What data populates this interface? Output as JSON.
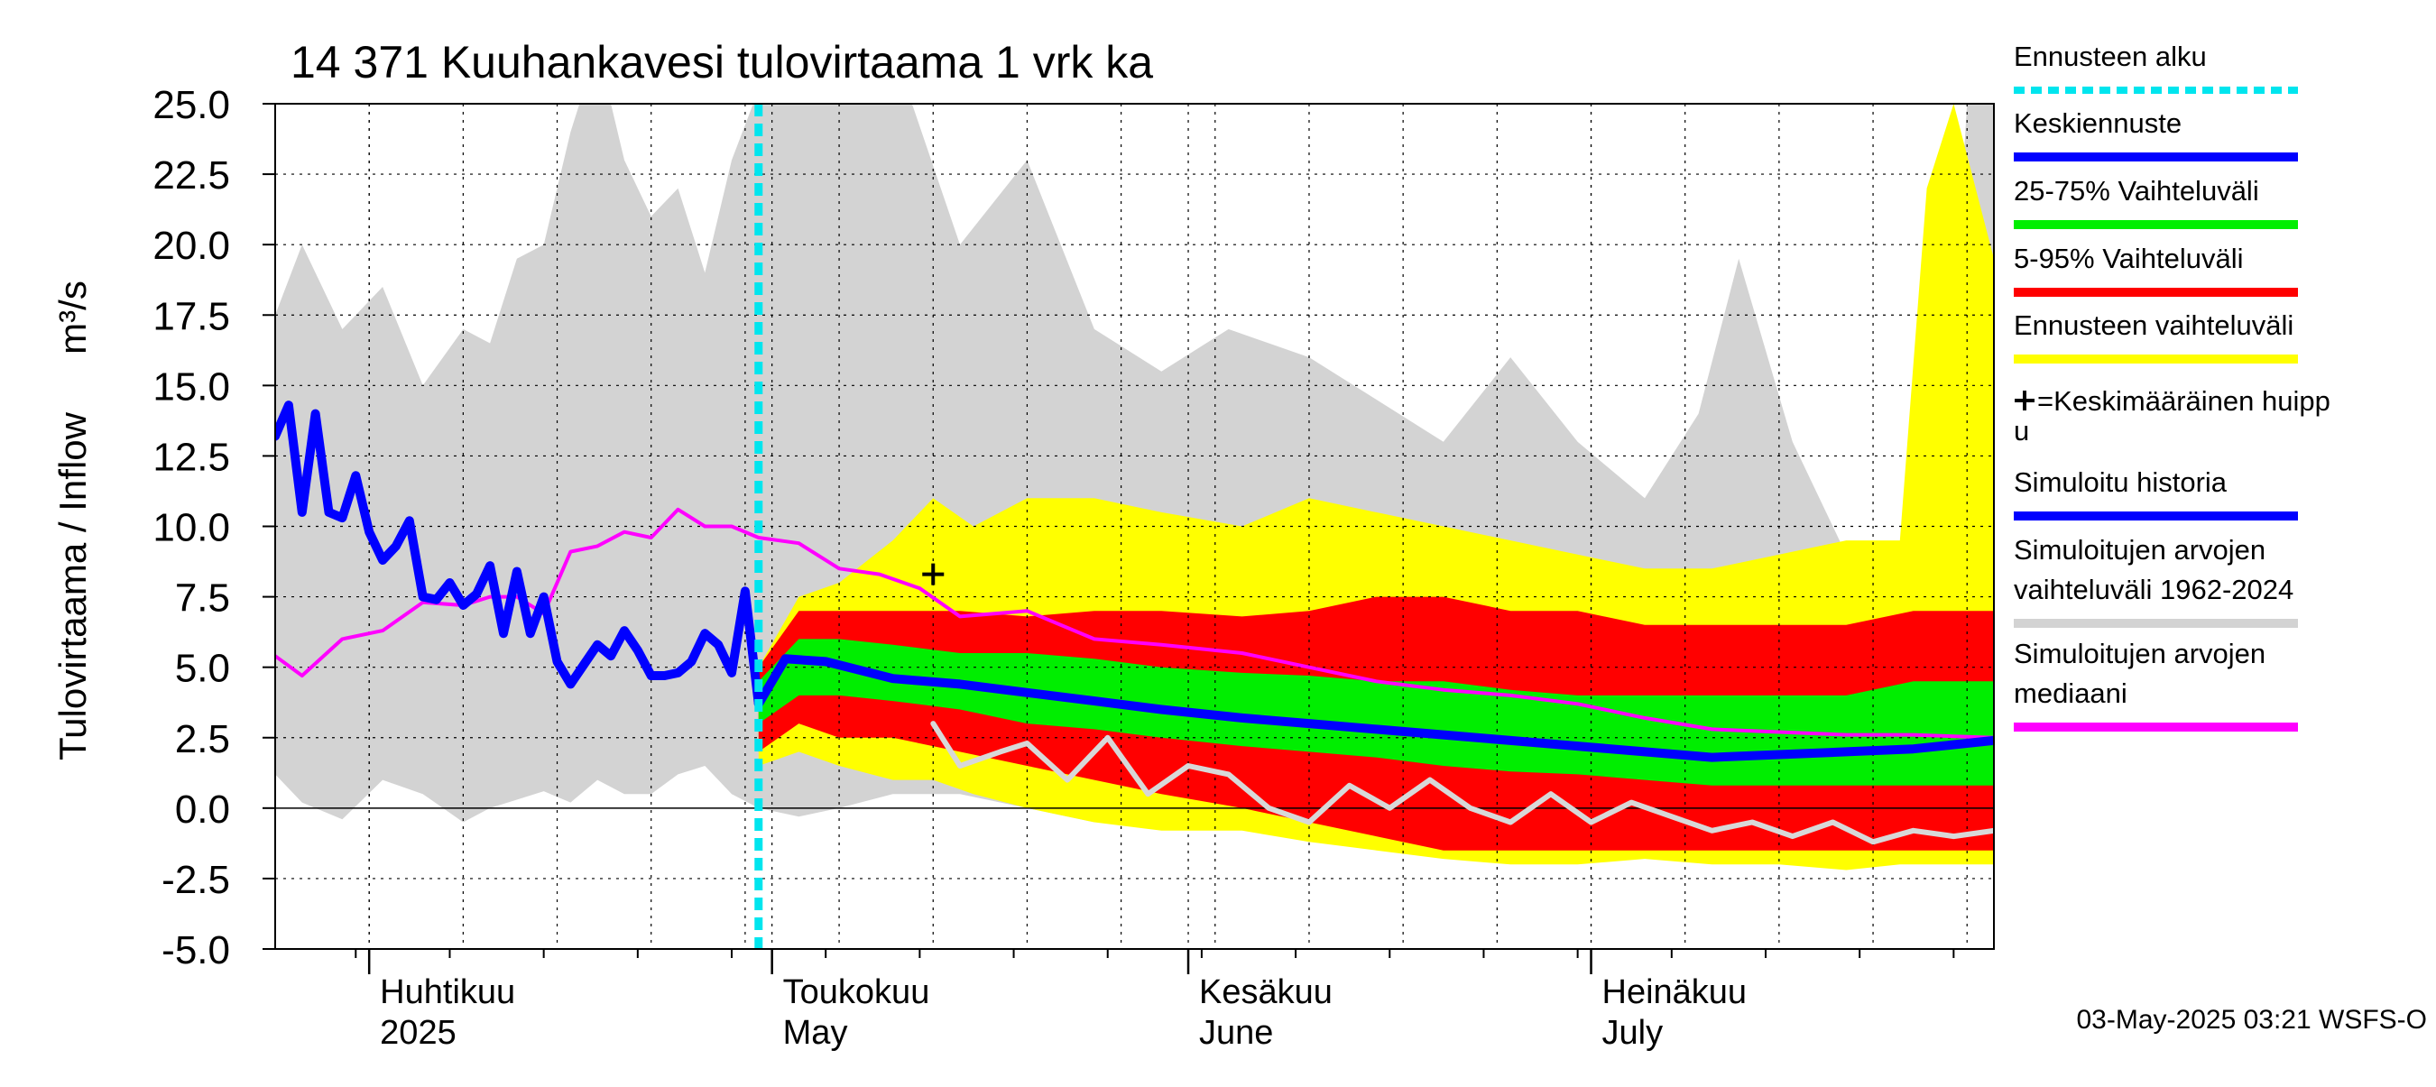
{
  "chart_data": {
    "type": "area",
    "title": "14 371 Kuuhankavesi tulovirtaama 1 vrk ka",
    "ylabel": "Tulovirtaama / Inflow",
    "yunit": "m³/s",
    "ylim": [
      -5.0,
      25.0
    ],
    "yticks": [
      "-5.0",
      "-2.5",
      "0.0",
      "2.5",
      "5.0",
      "7.5",
      "10.0",
      "12.5",
      "15.0",
      "17.5",
      "20.0",
      "22.5",
      "25.0"
    ],
    "xlim": [
      "2025-03-25",
      "2025-07-31"
    ],
    "months": [
      {
        "date": "2025-04-01",
        "fi": "Huhtikuu",
        "en": "2025"
      },
      {
        "date": "2025-05-01",
        "fi": "Toukokuu",
        "en": "May"
      },
      {
        "date": "2025-06-01",
        "fi": "Kesäkuu",
        "en": "June"
      },
      {
        "date": "2025-07-01",
        "fi": "Heinäkuu",
        "en": "July"
      }
    ],
    "grid": true,
    "legend_position": "right",
    "forecast_start": "2025-04-30",
    "mean_peak": {
      "date": "2025-05-13",
      "value": 8.3
    },
    "series": [
      {
        "name": "Simuloitujen arvojen vaihteluväli 1962-2024",
        "kind": "band",
        "color": "#d3d3d3",
        "x": [
          "2025-03-25",
          "2025-03-27",
          "2025-03-30",
          "2025-04-02",
          "2025-04-05",
          "2025-04-08",
          "2025-04-10",
          "2025-04-12",
          "2025-04-14",
          "2025-04-16",
          "2025-04-18",
          "2025-04-20",
          "2025-04-22",
          "2025-04-24",
          "2025-04-26",
          "2025-04-28",
          "2025-04-30",
          "2025-05-03",
          "2025-05-06",
          "2025-05-10",
          "2025-05-15",
          "2025-05-20",
          "2025-05-25",
          "2025-05-30",
          "2025-06-04",
          "2025-06-10",
          "2025-06-15",
          "2025-06-20",
          "2025-06-25",
          "2025-06-30",
          "2025-07-05",
          "2025-07-09",
          "2025-07-12",
          "2025-07-16",
          "2025-07-20",
          "2025-07-24",
          "2025-07-27",
          "2025-07-29",
          "2025-07-31"
        ],
        "low": [
          1.2,
          0.2,
          -0.4,
          1.0,
          0.5,
          -0.5,
          0.0,
          0.3,
          0.6,
          0.2,
          1.0,
          0.5,
          0.5,
          1.2,
          1.5,
          0.5,
          0.0,
          -0.3,
          0.0,
          0.5,
          0.5,
          0.0,
          -0.5,
          -0.3,
          0.0,
          -0.5,
          -0.8,
          -1.0,
          -0.8,
          -1.2,
          -1.0,
          -1.0,
          -0.5,
          -1.0,
          -2.0,
          -1.0,
          -0.8,
          -1.0,
          -1.2
        ],
        "high": [
          17.5,
          20.0,
          17.0,
          18.5,
          15.0,
          17.0,
          16.5,
          19.5,
          20.0,
          24.0,
          27.0,
          23.0,
          21.0,
          22.0,
          19.0,
          23.0,
          25.5,
          27.0,
          27.0,
          27.0,
          20.0,
          23.0,
          17.0,
          15.5,
          17.0,
          16.0,
          14.5,
          13.0,
          16.0,
          13.0,
          11.0,
          14.0,
          19.5,
          13.0,
          9.0,
          9.0,
          9.0,
          25.0,
          26.0
        ]
      },
      {
        "name": "Ennusteen vaihteluväli",
        "kind": "band",
        "color": "#ffff00",
        "x": [
          "2025-04-30",
          "2025-05-03",
          "2025-05-06",
          "2025-05-10",
          "2025-05-13",
          "2025-05-16",
          "2025-05-20",
          "2025-05-25",
          "2025-05-30",
          "2025-06-05",
          "2025-06-10",
          "2025-06-15",
          "2025-06-20",
          "2025-06-25",
          "2025-06-30",
          "2025-07-05",
          "2025-07-10",
          "2025-07-15",
          "2025-07-20",
          "2025-07-24",
          "2025-07-26",
          "2025-07-28",
          "2025-07-31"
        ],
        "low": [
          1.5,
          2.0,
          1.5,
          1.0,
          1.0,
          0.5,
          0.0,
          -0.5,
          -0.8,
          -0.8,
          -1.2,
          -1.5,
          -1.8,
          -2.0,
          -2.0,
          -1.8,
          -2.0,
          -2.0,
          -2.2,
          -2.0,
          -2.0,
          -2.0,
          -2.0
        ],
        "high": [
          5.0,
          7.5,
          8.0,
          9.5,
          11.0,
          10.0,
          11.0,
          11.0,
          10.5,
          10.0,
          11.0,
          10.5,
          10.0,
          9.5,
          9.0,
          8.5,
          8.5,
          9.0,
          9.5,
          9.5,
          22.0,
          25.0,
          19.5
        ]
      },
      {
        "name": "5-95% Vaihteluväli",
        "kind": "band",
        "color": "#ff0000",
        "x": [
          "2025-04-30",
          "2025-05-03",
          "2025-05-06",
          "2025-05-10",
          "2025-05-15",
          "2025-05-20",
          "2025-05-25",
          "2025-05-30",
          "2025-06-05",
          "2025-06-10",
          "2025-06-15",
          "2025-06-20",
          "2025-06-25",
          "2025-06-30",
          "2025-07-05",
          "2025-07-10",
          "2025-07-15",
          "2025-07-20",
          "2025-07-25",
          "2025-07-31"
        ],
        "low": [
          2.0,
          3.0,
          2.5,
          2.5,
          2.0,
          1.5,
          1.0,
          0.5,
          0.0,
          -0.5,
          -1.0,
          -1.5,
          -1.5,
          -1.5,
          -1.5,
          -1.5,
          -1.5,
          -1.5,
          -1.5,
          -1.5
        ],
        "high": [
          5.0,
          7.0,
          7.0,
          7.0,
          7.0,
          6.8,
          7.0,
          7.0,
          6.8,
          7.0,
          7.5,
          7.5,
          7.0,
          7.0,
          6.5,
          6.5,
          6.5,
          6.5,
          7.0,
          7.0
        ]
      },
      {
        "name": "25-75% Vaihteluväli",
        "kind": "band",
        "color": "#00ee00",
        "x": [
          "2025-04-30",
          "2025-05-03",
          "2025-05-06",
          "2025-05-10",
          "2025-05-15",
          "2025-05-20",
          "2025-05-25",
          "2025-05-30",
          "2025-06-05",
          "2025-06-10",
          "2025-06-15",
          "2025-06-20",
          "2025-06-25",
          "2025-06-30",
          "2025-07-05",
          "2025-07-10",
          "2025-07-15",
          "2025-07-20",
          "2025-07-25",
          "2025-07-31"
        ],
        "low": [
          3.0,
          4.0,
          4.0,
          3.8,
          3.5,
          3.0,
          2.8,
          2.5,
          2.2,
          2.0,
          1.8,
          1.5,
          1.3,
          1.2,
          1.0,
          0.8,
          0.8,
          0.8,
          0.8,
          0.8
        ],
        "high": [
          4.5,
          6.0,
          6.0,
          5.8,
          5.5,
          5.5,
          5.3,
          5.0,
          4.8,
          4.7,
          4.5,
          4.5,
          4.2,
          4.0,
          4.0,
          4.0,
          4.0,
          4.0,
          4.5,
          4.5
        ]
      },
      {
        "name": "Simuloitujen arvojen mediaani",
        "kind": "line",
        "color": "#ff00ff",
        "x": [
          "2025-03-25",
          "2025-03-27",
          "2025-03-30",
          "2025-04-02",
          "2025-04-05",
          "2025-04-08",
          "2025-04-10",
          "2025-04-12",
          "2025-04-14",
          "2025-04-16",
          "2025-04-18",
          "2025-04-20",
          "2025-04-22",
          "2025-04-24",
          "2025-04-26",
          "2025-04-28",
          "2025-04-30",
          "2025-05-03",
          "2025-05-06",
          "2025-05-09",
          "2025-05-12",
          "2025-05-15",
          "2025-05-20",
          "2025-05-25",
          "2025-05-30",
          "2025-06-05",
          "2025-06-10",
          "2025-06-15",
          "2025-06-20",
          "2025-06-25",
          "2025-06-30",
          "2025-07-05",
          "2025-07-10",
          "2025-07-15",
          "2025-07-20",
          "2025-07-25",
          "2025-07-31"
        ],
        "values": [
          5.4,
          4.7,
          6.0,
          6.3,
          7.3,
          7.2,
          7.5,
          7.5,
          6.9,
          9.1,
          9.3,
          9.8,
          9.6,
          10.6,
          10.0,
          10.0,
          9.6,
          9.4,
          8.5,
          8.3,
          7.8,
          6.8,
          7.0,
          6.0,
          5.8,
          5.5,
          5.0,
          4.5,
          4.2,
          4.0,
          3.7,
          3.2,
          2.8,
          2.7,
          2.6,
          2.6,
          2.5
        ]
      },
      {
        "name": "Simuloitu historia",
        "kind": "line",
        "color": "#0000ff",
        "x": [
          "2025-03-25",
          "2025-03-26",
          "2025-03-27",
          "2025-03-28",
          "2025-03-29",
          "2025-03-30",
          "2025-03-31",
          "2025-04-01",
          "2025-04-02",
          "2025-04-03",
          "2025-04-04",
          "2025-04-05",
          "2025-04-06",
          "2025-04-07",
          "2025-04-08",
          "2025-04-09",
          "2025-04-10",
          "2025-04-11",
          "2025-04-12",
          "2025-04-13",
          "2025-04-14",
          "2025-04-15",
          "2025-04-16",
          "2025-04-17",
          "2025-04-18",
          "2025-04-19",
          "2025-04-20",
          "2025-04-21",
          "2025-04-22",
          "2025-04-23",
          "2025-04-24",
          "2025-04-25",
          "2025-04-26",
          "2025-04-27",
          "2025-04-28",
          "2025-04-29",
          "2025-04-30"
        ],
        "values": [
          13.2,
          14.3,
          10.5,
          14.0,
          10.5,
          10.3,
          11.8,
          9.8,
          8.8,
          9.3,
          10.2,
          7.5,
          7.4,
          8.0,
          7.2,
          7.6,
          8.6,
          6.2,
          8.4,
          6.2,
          7.5,
          5.2,
          4.4,
          5.1,
          5.8,
          5.4,
          6.3,
          5.6,
          4.7,
          4.7,
          4.8,
          5.2,
          6.2,
          5.8,
          4.8,
          7.7,
          3.7
        ]
      },
      {
        "name": "Keskiennuste",
        "kind": "line",
        "color": "#0000ff",
        "x": [
          "2025-04-30",
          "2025-05-02",
          "2025-05-05",
          "2025-05-10",
          "2025-05-15",
          "2025-05-20",
          "2025-05-25",
          "2025-05-30",
          "2025-06-05",
          "2025-06-10",
          "2025-06-15",
          "2025-06-20",
          "2025-06-25",
          "2025-06-30",
          "2025-07-05",
          "2025-07-10",
          "2025-07-15",
          "2025-07-20",
          "2025-07-25",
          "2025-07-31"
        ],
        "values": [
          3.7,
          5.3,
          5.2,
          4.6,
          4.4,
          4.1,
          3.8,
          3.5,
          3.2,
          3.0,
          2.8,
          2.6,
          2.4,
          2.2,
          2.0,
          1.8,
          1.9,
          2.0,
          2.1,
          2.4
        ]
      },
      {
        "name": "",
        "kind": "line",
        "color": "#d8d8d8",
        "x": [
          "2025-05-13",
          "2025-05-15",
          "2025-05-18",
          "2025-05-20",
          "2025-05-23",
          "2025-05-26",
          "2025-05-29",
          "2025-06-01",
          "2025-06-04",
          "2025-06-07",
          "2025-06-10",
          "2025-06-13",
          "2025-06-16",
          "2025-06-19",
          "2025-06-22",
          "2025-06-25",
          "2025-06-28",
          "2025-07-01",
          "2025-07-04",
          "2025-07-07",
          "2025-07-10",
          "2025-07-13",
          "2025-07-16",
          "2025-07-19",
          "2025-07-22",
          "2025-07-25",
          "2025-07-28",
          "2025-07-31"
        ],
        "values": [
          3.0,
          1.5,
          2.0,
          2.3,
          1.0,
          2.5,
          0.5,
          1.5,
          1.2,
          0.0,
          -0.5,
          0.8,
          0.0,
          1.0,
          0.0,
          -0.5,
          0.5,
          -0.5,
          0.2,
          -0.3,
          -0.8,
          -0.5,
          -1.0,
          -0.5,
          -1.2,
          -0.8,
          -1.0,
          -0.8
        ]
      }
    ]
  },
  "legend": [
    {
      "label": "Ennusteen alku",
      "color": "#00e5ee",
      "style": "dotted"
    },
    {
      "label": "Keskiennuste",
      "color": "#0000ff",
      "style": "solid"
    },
    {
      "label": "25-75% Vaihteluväli",
      "color": "#00ee00",
      "style": "solid"
    },
    {
      "label": "5-95% Vaihteluväli",
      "color": "#ff0000",
      "style": "solid"
    },
    {
      "label": "Ennusteen vaihteluväli",
      "color": "#ffff00",
      "style": "solid"
    },
    {
      "label": "=Keskimääräinen huipp",
      "label2": "u",
      "color": "#000000",
      "style": "marker"
    },
    {
      "label": "Simuloitu historia",
      "color": "#0000ff",
      "style": "solid"
    },
    {
      "label": "Simuloitujen arvojen",
      "label2": "vaihteluväli 1962-2024",
      "color": "#d3d3d3",
      "style": "solid"
    },
    {
      "label": "Simuloitujen arvojen",
      "label2": "mediaani",
      "color": "#ff00ff",
      "style": "solid"
    }
  ],
  "footer": "03-May-2025 03:21 WSFS-O"
}
